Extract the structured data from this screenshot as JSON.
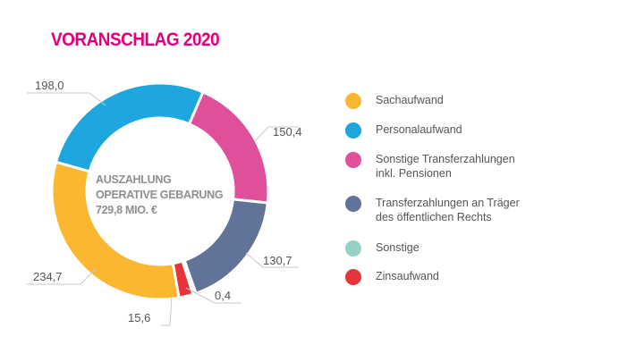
{
  "title": "VORANSCHLAG 2020",
  "center": {
    "line1": "AUSZAHLUNG",
    "line2": "OPERATIVE GEBARUNG",
    "line3": "729,8 MIO. €"
  },
  "chart_data": {
    "type": "pie",
    "donut": true,
    "title": "VORANSCHLAG 2020",
    "unit": "Mio. €",
    "total": 729.8,
    "slices": [
      {
        "name": "Sonstige Transferzahlungen inkl. Pensionen",
        "value": 150.4,
        "label": "150,4",
        "color": "#e0509a"
      },
      {
        "name": "Transferzahlungen an Träger des öffentlichen Rechts",
        "value": 130.7,
        "label": "130,7",
        "color": "#62739a"
      },
      {
        "name": "Sonstige",
        "value": 0.4,
        "label": "0,4",
        "color": "#93d2c4"
      },
      {
        "name": "Zinsaufwand",
        "value": 15.6,
        "label": "15,6",
        "color": "#e5343a"
      },
      {
        "name": "Sachaufwand",
        "value": 234.7,
        "label": "234,7",
        "color": "#fbb731"
      },
      {
        "name": "Personalaufwand",
        "value": 198.0,
        "label": "198,0",
        "color": "#1ea6df"
      }
    ],
    "legend_placement": "right"
  },
  "legend": [
    {
      "line1": "Sachaufwand",
      "line2": "",
      "color": "#fbb731"
    },
    {
      "line1": "Personalaufwand",
      "line2": "",
      "color": "#1ea6df"
    },
    {
      "line1": "Sonstige Transferzahlungen",
      "line2": "inkl. Pensionen",
      "color": "#e0509a"
    },
    {
      "line1": "Transferzahlungen an Träger",
      "line2": "des öffentlichen Rechts",
      "color": "#62739a"
    },
    {
      "line1": "Sonstige",
      "line2": "",
      "color": "#93d2c4"
    },
    {
      "line1": "Zinsaufwand",
      "line2": "",
      "color": "#e5343a"
    }
  ]
}
